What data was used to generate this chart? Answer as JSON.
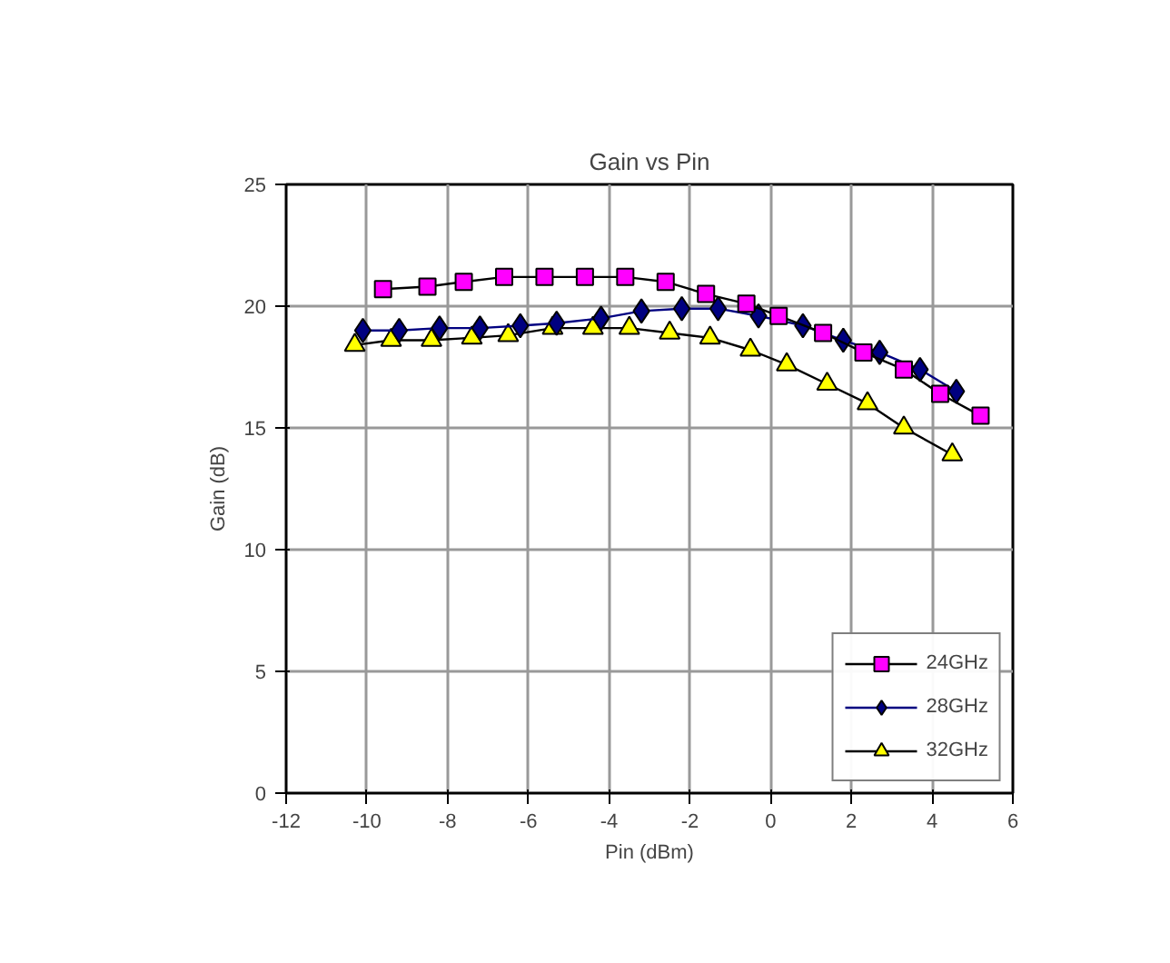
{
  "chart_data": {
    "type": "line",
    "title": "Gain vs Pin",
    "xlabel": "Pin (dBm)",
    "ylabel": "Gain (dB)",
    "xlim": [
      -12,
      6
    ],
    "xticks": [
      -12,
      -10,
      -8,
      -6,
      -4,
      -2,
      0,
      2,
      4,
      6
    ],
    "ylim": [
      0,
      25
    ],
    "yticks": [
      0,
      5,
      10,
      15,
      20,
      25
    ],
    "grid": true,
    "legend": "bottom right",
    "line_style": "solid",
    "series": [
      {
        "name": "24GHz",
        "color": "#ff00ff",
        "marker": "square",
        "x": [
          -9.6,
          -8.5,
          -7.6,
          -6.6,
          -5.6,
          -4.6,
          -3.6,
          -2.6,
          -1.6,
          -0.6,
          0.2,
          1.3,
          2.3,
          3.3,
          4.2,
          5.2
        ],
        "values": [
          20.7,
          20.8,
          21.0,
          21.2,
          21.2,
          21.2,
          21.2,
          21.0,
          20.5,
          20.1,
          19.6,
          18.9,
          18.1,
          17.4,
          16.4,
          15.5
        ]
      },
      {
        "name": "28GHz",
        "color": "#000080",
        "marker": "diamond",
        "x": [
          -10.1,
          -9.2,
          -8.2,
          -7.2,
          -6.2,
          -5.3,
          -4.2,
          -3.2,
          -2.2,
          -1.3,
          -0.3,
          0.8,
          1.8,
          2.7,
          3.7,
          4.6
        ],
        "values": [
          19.0,
          19.0,
          19.1,
          19.1,
          19.2,
          19.3,
          19.5,
          19.8,
          19.9,
          19.9,
          19.6,
          19.2,
          18.6,
          18.1,
          17.4,
          16.5
        ]
      },
      {
        "name": "32GHz",
        "color": "#ffff00",
        "marker": "triangle",
        "x": [
          -10.3,
          -9.4,
          -8.4,
          -7.4,
          -6.5,
          -5.4,
          -4.4,
          -3.5,
          -2.5,
          -1.5,
          -0.5,
          0.4,
          1.4,
          2.4,
          3.3,
          4.5
        ],
        "values": [
          18.4,
          18.6,
          18.6,
          18.7,
          18.8,
          19.1,
          19.1,
          19.1,
          18.9,
          18.7,
          18.2,
          17.6,
          16.8,
          16.0,
          15.0,
          13.9
        ]
      }
    ]
  }
}
